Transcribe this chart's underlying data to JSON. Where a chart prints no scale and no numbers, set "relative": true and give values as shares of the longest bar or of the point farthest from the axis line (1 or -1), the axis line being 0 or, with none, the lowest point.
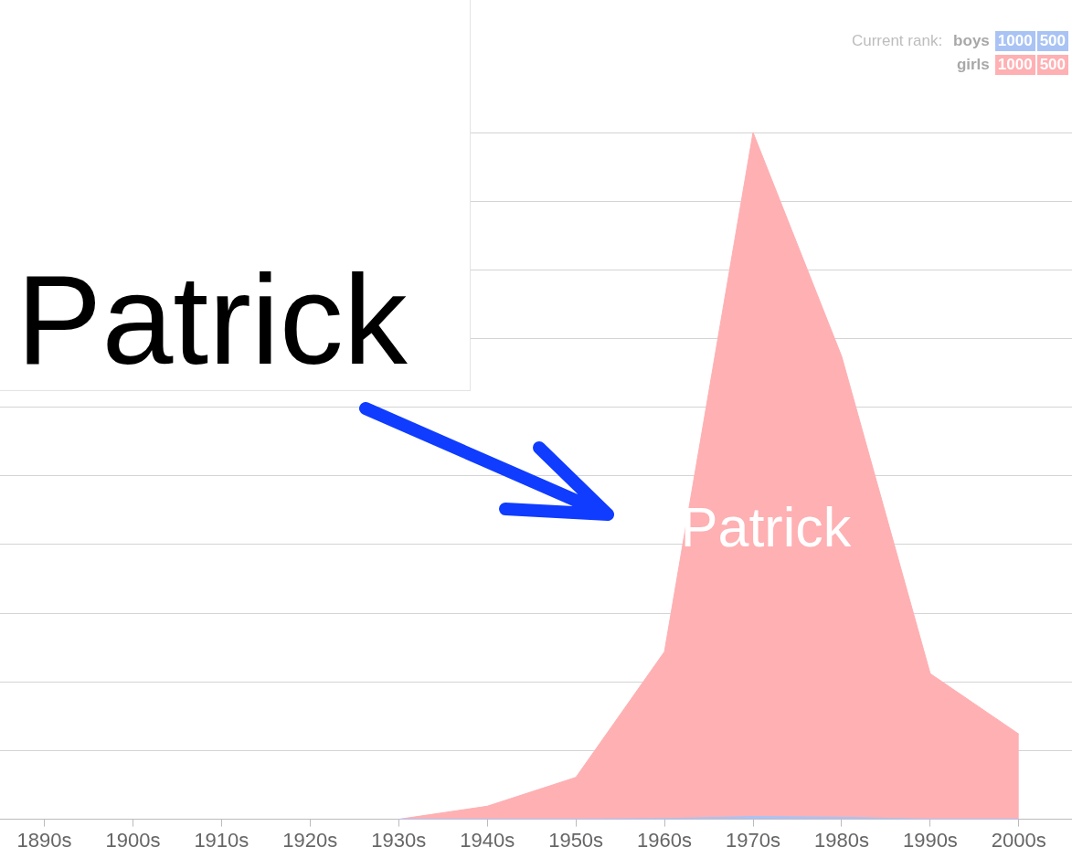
{
  "chart_data": {
    "type": "area",
    "title": "Patrick",
    "legend_title": "Current rank:",
    "legend": "top right",
    "relative": true,
    "grid": "y",
    "x": [
      1930,
      1940,
      1950,
      1960,
      1970,
      1980,
      1990,
      2000
    ],
    "series": [
      {
        "name": "boys",
        "color": "#a9c3f4",
        "values": [
          0,
          0,
          0,
          0.001,
          0.004,
          0.003,
          0,
          0
        ]
      },
      {
        "name": "girls",
        "color": "#feb0b3",
        "values": [
          0,
          0.019,
          0.061,
          0.244,
          1,
          0.674,
          0.212,
          0.124
        ]
      }
    ],
    "xlim": [
      1885,
      2006
    ],
    "xticks": [
      {
        "value": 1890,
        "label": "1890s"
      },
      {
        "value": 1900,
        "label": "1900s"
      },
      {
        "value": 1910,
        "label": "1910s"
      },
      {
        "value": 1920,
        "label": "1920s"
      },
      {
        "value": 1930,
        "label": "1930s"
      },
      {
        "value": 1940,
        "label": "1940s"
      },
      {
        "value": 1950,
        "label": "1950s"
      },
      {
        "value": 1960,
        "label": "1960s"
      },
      {
        "value": 1970,
        "label": "1970s"
      },
      {
        "value": 1980,
        "label": "1980s"
      },
      {
        "value": 1990,
        "label": "1990s"
      },
      {
        "value": 2000,
        "label": "2000s"
      }
    ],
    "annotations": [
      "Patrick",
      "1000",
      "500",
      "1000",
      "500"
    ]
  }
}
